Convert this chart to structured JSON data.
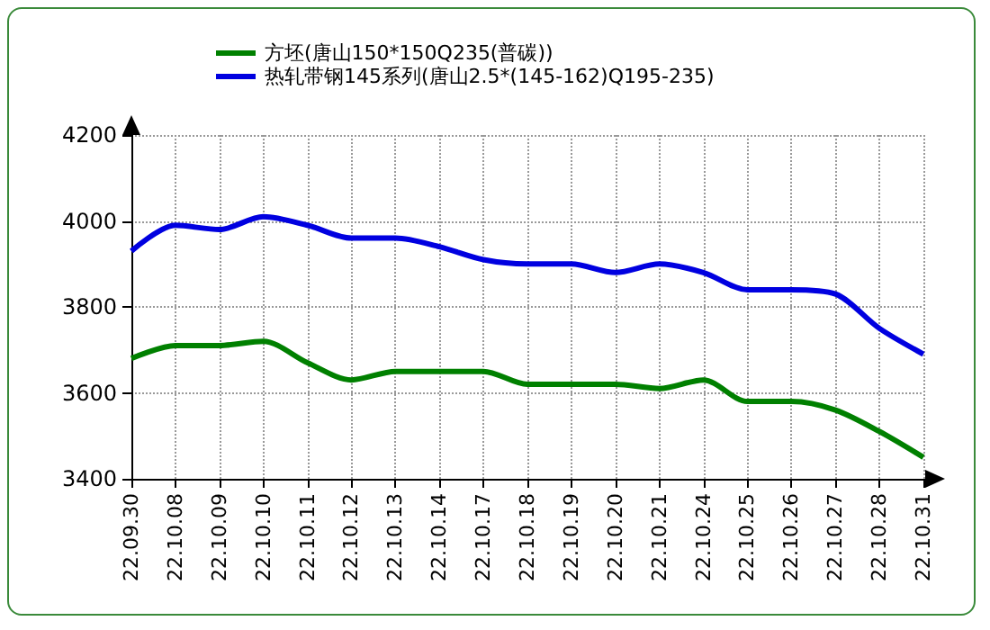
{
  "chart_data": {
    "type": "line",
    "categories": [
      "22.09.30",
      "22.10.08",
      "22.10.09",
      "22.10.10",
      "22.10.11",
      "22.10.12",
      "22.10.13",
      "22.10.14",
      "22.10.17",
      "22.10.18",
      "22.10.19",
      "22.10.20",
      "22.10.21",
      "22.10.24",
      "22.10.25",
      "22.10.26",
      "22.10.27",
      "22.10.28",
      "22.10.31"
    ],
    "series": [
      {
        "name": "方坯(唐山150*150Q235(普碳))",
        "color": "#008000",
        "values": [
          3680,
          3710,
          3710,
          3720,
          3670,
          3630,
          3650,
          3650,
          3650,
          3620,
          3620,
          3620,
          3610,
          3630,
          3580,
          3580,
          3560,
          3510,
          3450
        ]
      },
      {
        "name": "热轧带钢145系列(唐山2.5*(145-162)Q195-235)",
        "color": "#0000e0",
        "values": [
          3930,
          3990,
          3980,
          4010,
          3990,
          3960,
          3960,
          3940,
          3910,
          3900,
          3900,
          3880,
          3900,
          3880,
          3840,
          3840,
          3830,
          3750,
          3690
        ]
      }
    ],
    "ylim": [
      3400,
      4200
    ],
    "yticks": [
      3400,
      3600,
      3800,
      4000,
      4200
    ],
    "grid": true,
    "legend": "top",
    "marker": "none",
    "line_style": "solid"
  }
}
